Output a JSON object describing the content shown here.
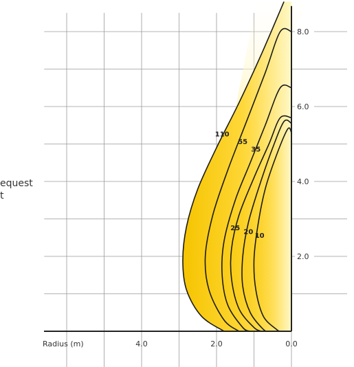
{
  "side_text": {
    "line1": "equest",
    "line2": "t"
  },
  "colors": {
    "fill_strong": "#f7c600",
    "fill_light": "#fff4b0",
    "curve": "#1a1a1a",
    "grid": "#9a9a9a",
    "axis": "#222222"
  },
  "chart_data": {
    "type": "area",
    "title": "",
    "xlabel": "Radius (m)",
    "ylabel": "",
    "x_reversed": true,
    "xlim": [
      0,
      6.8
    ],
    "ylim": [
      0,
      8.5
    ],
    "x_ticks": [
      {
        "value": 4.0,
        "label": "4.0"
      },
      {
        "value": 2.0,
        "label": "2.0"
      },
      {
        "value": 0.0,
        "label": "0.0"
      }
    ],
    "y_ticks": [
      {
        "value": 8.0,
        "label": "8.0"
      },
      {
        "value": 6.0,
        "label": "6.0"
      },
      {
        "value": 4.0,
        "label": "4.0"
      },
      {
        "value": 2.0,
        "label": "2.0"
      }
    ],
    "grid": true,
    "series": [
      {
        "name": "110",
        "label_at": [
          1.85,
          5.2
        ],
        "points": [
          [
            0.2,
            8.8
          ],
          [
            0.8,
            7.4
          ],
          [
            1.4,
            6.1
          ],
          [
            2.0,
            4.9
          ],
          [
            2.5,
            3.8
          ],
          [
            2.8,
            2.8
          ],
          [
            2.9,
            1.9
          ],
          [
            2.8,
            1.1
          ],
          [
            2.4,
            0.4
          ],
          [
            1.8,
            0.0
          ]
        ]
      },
      {
        "name": "55",
        "label_at": [
          1.3,
          5.0
        ],
        "points": [
          [
            0.0,
            8.0
          ],
          [
            0.3,
            8.0
          ],
          [
            0.7,
            6.9
          ],
          [
            1.2,
            5.6
          ],
          [
            1.7,
            4.3
          ],
          [
            2.1,
            3.1
          ],
          [
            2.3,
            2.0
          ],
          [
            2.2,
            1.1
          ],
          [
            1.8,
            0.3
          ],
          [
            1.4,
            0.0
          ]
        ]
      },
      {
        "name": "35",
        "label_at": [
          0.95,
          4.8
        ],
        "points": [
          [
            0.0,
            6.5
          ],
          [
            0.3,
            6.5
          ],
          [
            0.7,
            5.5
          ],
          [
            1.1,
            4.5
          ],
          [
            1.5,
            3.5
          ],
          [
            1.8,
            2.4
          ],
          [
            1.85,
            1.5
          ],
          [
            1.7,
            0.7
          ],
          [
            1.3,
            0.1
          ],
          [
            1.1,
            0.0
          ]
        ]
      },
      {
        "name": "25",
        "label_at": [
          1.5,
          2.7
        ],
        "points": [
          [
            0.0,
            5.7
          ],
          [
            0.3,
            5.7
          ],
          [
            0.6,
            5.0
          ],
          [
            1.0,
            4.1
          ],
          [
            1.4,
            3.1
          ],
          [
            1.6,
            2.2
          ],
          [
            1.6,
            1.4
          ],
          [
            1.4,
            0.6
          ],
          [
            1.0,
            0.1
          ],
          [
            0.8,
            0.0
          ]
        ]
      },
      {
        "name": "20",
        "label_at": [
          1.15,
          2.6
        ],
        "points": [
          [
            0.0,
            5.55
          ],
          [
            0.2,
            5.6
          ],
          [
            0.5,
            4.9
          ],
          [
            0.85,
            3.9
          ],
          [
            1.15,
            2.9
          ],
          [
            1.3,
            2.0
          ],
          [
            1.3,
            1.2
          ],
          [
            1.1,
            0.5
          ],
          [
            0.75,
            0.05
          ],
          [
            0.6,
            0.0
          ]
        ]
      },
      {
        "name": "10",
        "label_at": [
          0.85,
          2.5
        ],
        "points": [
          [
            0.0,
            5.3
          ],
          [
            0.1,
            5.4
          ],
          [
            0.4,
            4.7
          ],
          [
            0.7,
            3.8
          ],
          [
            0.9,
            2.8
          ],
          [
            1.0,
            1.9
          ],
          [
            0.95,
            1.1
          ],
          [
            0.75,
            0.4
          ],
          [
            0.4,
            0.05
          ],
          [
            0.3,
            0.0
          ]
        ]
      }
    ]
  }
}
